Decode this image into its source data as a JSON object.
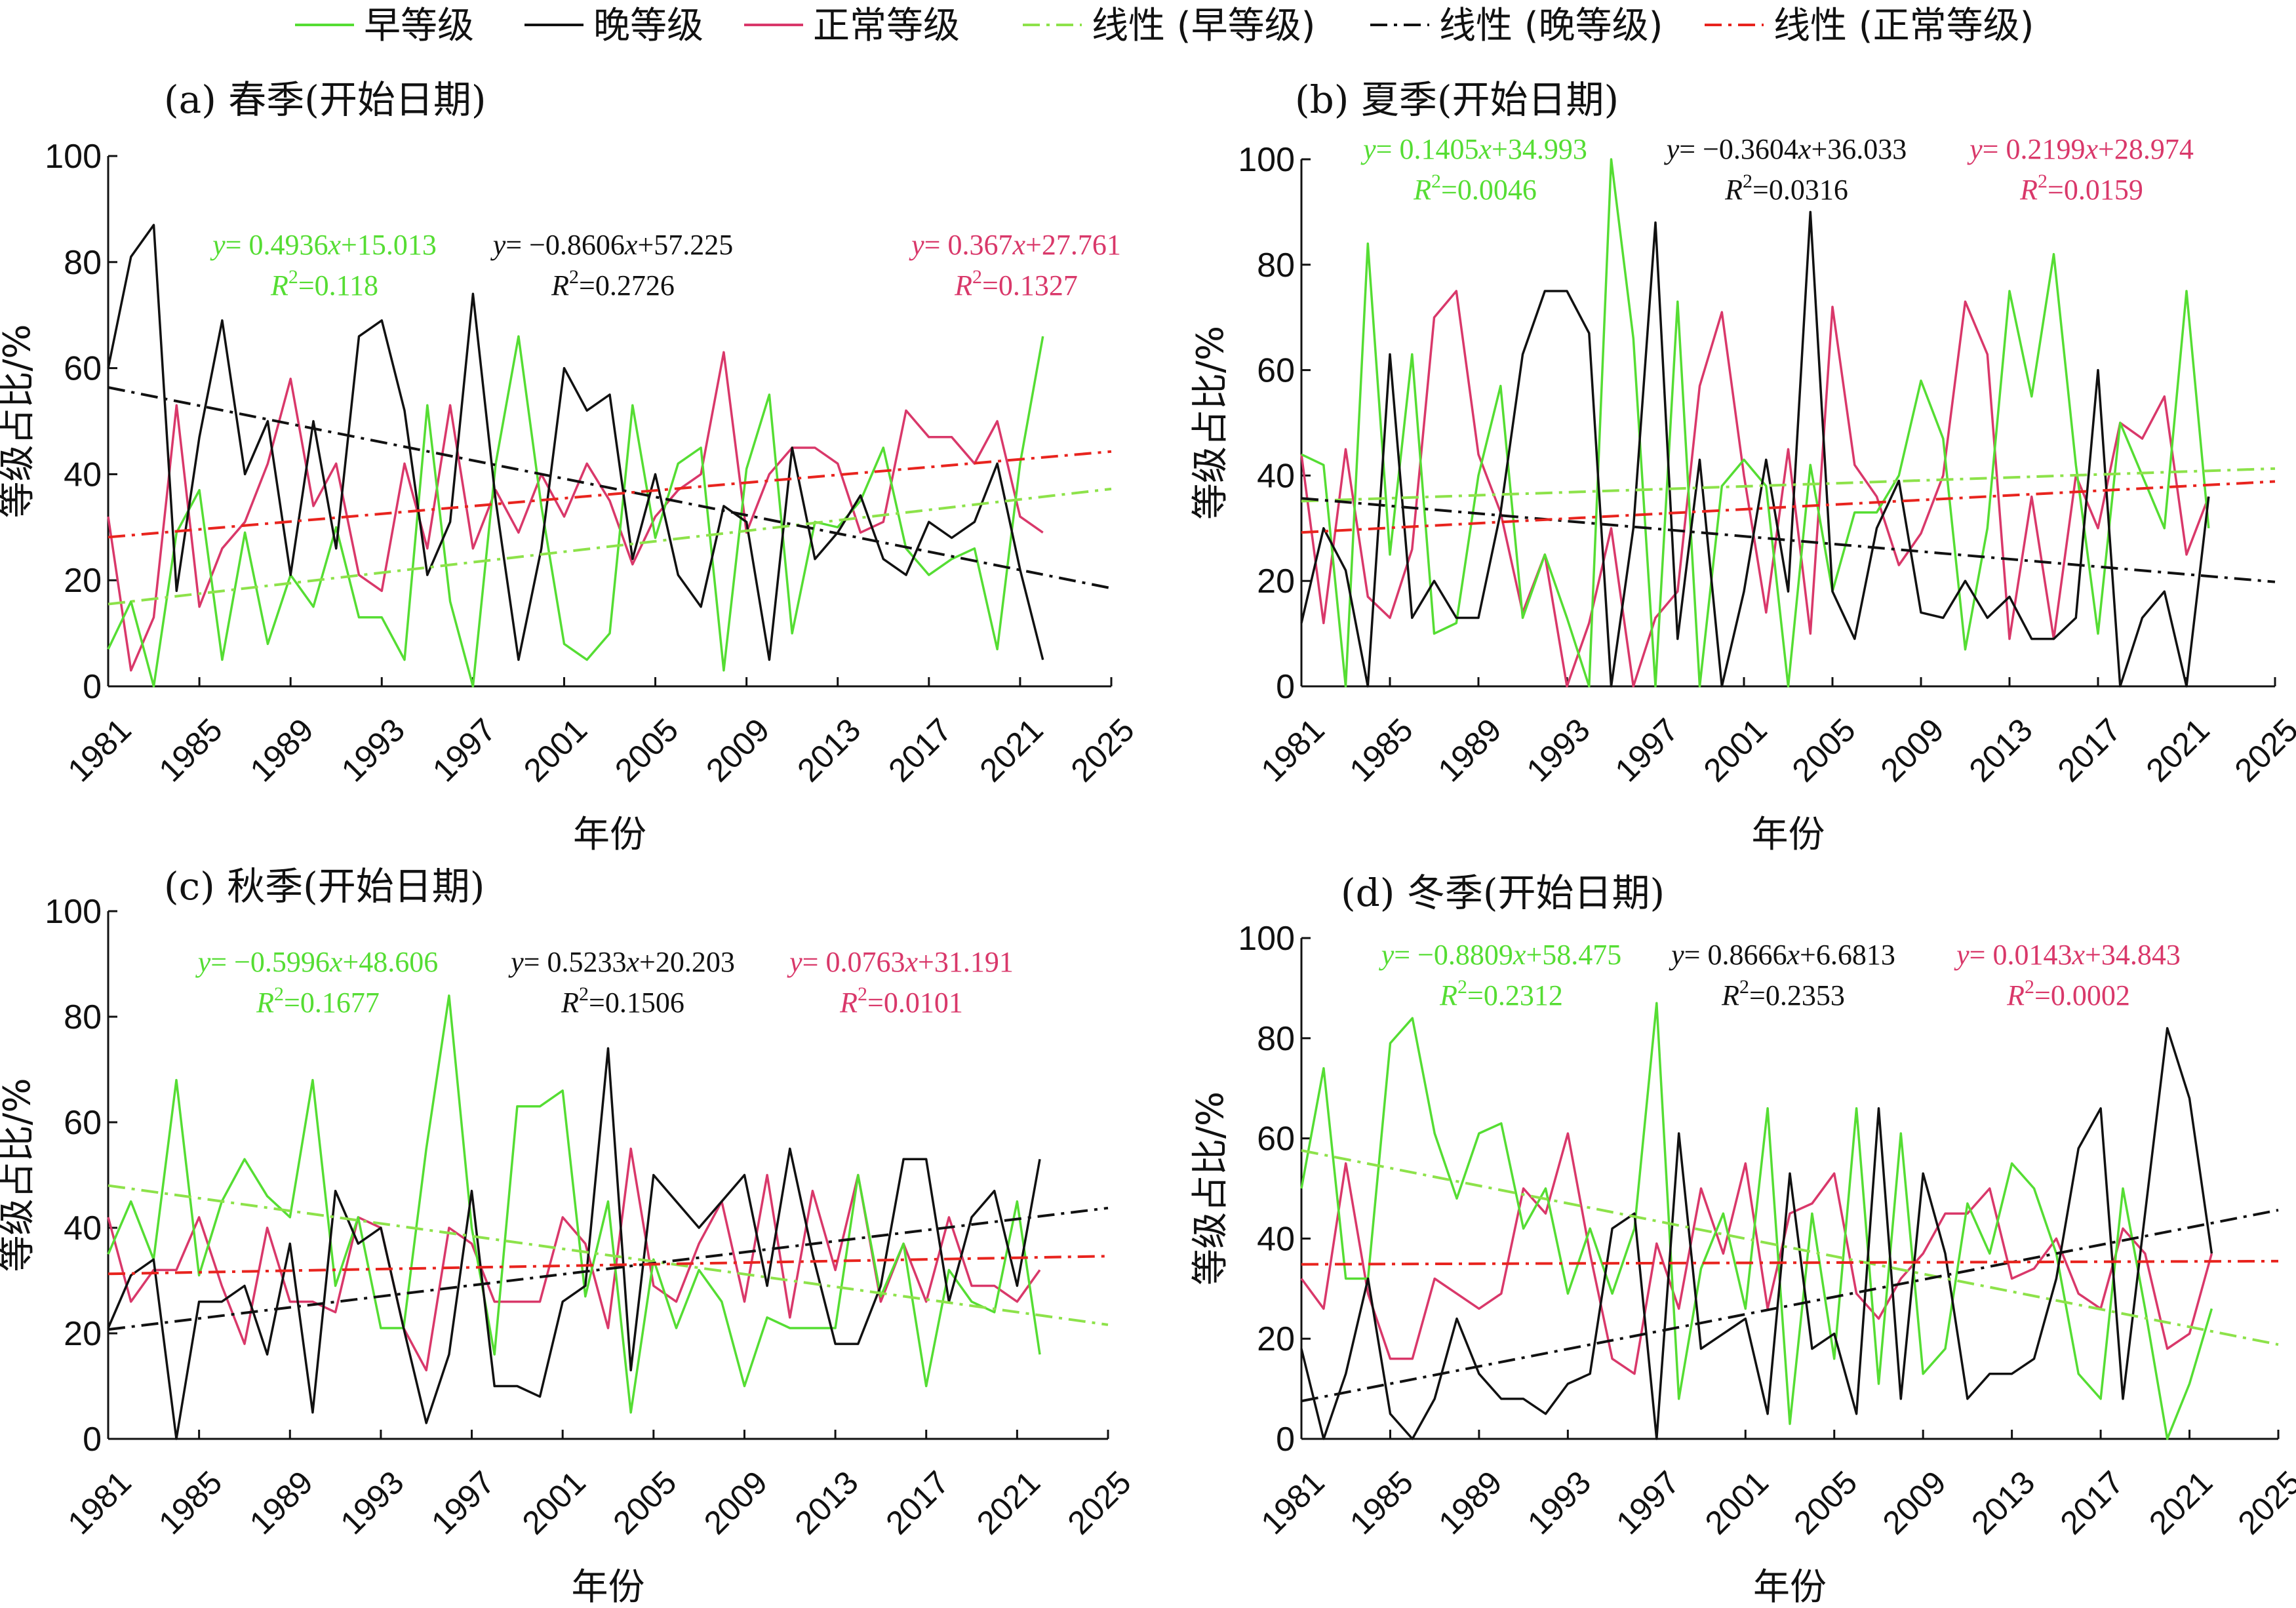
{
  "legend": [
    {
      "label": "早等级",
      "color": "#55dd33",
      "dash": "solid"
    },
    {
      "label": "晚等级",
      "color": "#111111",
      "dash": "solid"
    },
    {
      "label": "正常等级",
      "color": "#d9386a",
      "dash": "solid"
    },
    {
      "label": "线性 (早等级)",
      "color": "#8de24a",
      "dash": "dashdot"
    },
    {
      "label": "线性 (晚等级)",
      "color": "#111111",
      "dash": "dashdot"
    },
    {
      "label": "线性 (正常等级)",
      "color": "#e8241e",
      "dash": "dashdot"
    }
  ],
  "chart_data": [
    {
      "type": "line",
      "title": "(a) 春季(开始日期)",
      "xlabel": "年份",
      "ylabel": "等级占比/%",
      "xlim": [
        1981,
        2025
      ],
      "ylim": [
        0,
        100
      ],
      "x_ticks": [
        1981,
        1985,
        1989,
        1993,
        1997,
        2001,
        2005,
        2009,
        2013,
        2017,
        2021,
        2025
      ],
      "y_ticks": [
        0,
        20,
        40,
        60,
        80,
        100
      ],
      "x": [
        1981,
        1982,
        1983,
        1984,
        1985,
        1986,
        1987,
        1988,
        1989,
        1990,
        1991,
        1992,
        1993,
        1994,
        1995,
        1996,
        1997,
        1998,
        1999,
        2000,
        2001,
        2002,
        2003,
        2004,
        2005,
        2006,
        2007,
        2008,
        2009,
        2010,
        2011,
        2012,
        2013,
        2014,
        2015,
        2016,
        2017,
        2018,
        2019,
        2020,
        2021,
        2022
      ],
      "series": [
        {
          "name": "早等级",
          "color": "#55dd33",
          "values": [
            7,
            16,
            0,
            29,
            37,
            5,
            29,
            8,
            21,
            15,
            30,
            13,
            13,
            5,
            53,
            16,
            0,
            42,
            66,
            34,
            8,
            5,
            10,
            53,
            28,
            42,
            45,
            3,
            41,
            55,
            10,
            31,
            30,
            35,
            45,
            26,
            21,
            24,
            26,
            7,
            42,
            66
          ]
        },
        {
          "name": "晚等级",
          "color": "#111111",
          "values": [
            60,
            81,
            87,
            18,
            47,
            69,
            40,
            50,
            21,
            50,
            26,
            66,
            69,
            52,
            21,
            31,
            74,
            35,
            5,
            26,
            60,
            52,
            55,
            24,
            40,
            21,
            15,
            34,
            31,
            5,
            45,
            24,
            29,
            36,
            24,
            21,
            31,
            28,
            31,
            42,
            22,
            5
          ]
        },
        {
          "name": "正常等级",
          "color": "#d9386a",
          "values": [
            32,
            3,
            13,
            53,
            15,
            26,
            31,
            42,
            58,
            34,
            42,
            21,
            18,
            42,
            26,
            53,
            26,
            37,
            29,
            40,
            32,
            42,
            35,
            23,
            32,
            37,
            40,
            63,
            29,
            40,
            45,
            45,
            42,
            29,
            31,
            52,
            47,
            47,
            42,
            50,
            32,
            29
          ]
        }
      ],
      "trendlines": [
        {
          "name": "线性 (早等级)",
          "slope": 0.4936,
          "intercept": 15.013,
          "r2": 0.118,
          "color": "#8de24a"
        },
        {
          "name": "线性 (晚等级)",
          "slope": -0.8606,
          "intercept": 57.225,
          "r2": 0.2726,
          "color": "#111111"
        },
        {
          "name": "线性 (正常等级)",
          "slope": 0.367,
          "intercept": 27.761,
          "r2": 0.1327,
          "color": "#e8241e"
        }
      ],
      "equations": [
        {
          "eq_prefix": "y",
          "eq_body": "= 0.4936",
          "eq_var": "x",
          "eq_tail": "+15.013",
          "r2_label": "=0.118",
          "color": "#55dd33"
        },
        {
          "eq_prefix": "y",
          "eq_body": "= −0.8606",
          "eq_var": "x",
          "eq_tail": "+57.225",
          "r2_label": "=0.2726",
          "color": "#111111"
        },
        {
          "eq_prefix": "y",
          "eq_body": "= 0.367",
          "eq_var": "x",
          "eq_tail": "+27.761",
          "r2_label": "=0.1327",
          "color": "#d9386a"
        }
      ]
    },
    {
      "type": "line",
      "title": "(b) 夏季(开始日期)",
      "xlabel": "年份",
      "ylabel": "等级占比/%",
      "xlim": [
        1981,
        2025
      ],
      "ylim": [
        0,
        100
      ],
      "x_ticks": [
        1981,
        1985,
        1989,
        1993,
        1997,
        2001,
        2005,
        2009,
        2013,
        2017,
        2021,
        2025
      ],
      "y_ticks": [
        0,
        20,
        40,
        60,
        80,
        100
      ],
      "x": [
        1981,
        1982,
        1983,
        1984,
        1985,
        1986,
        1987,
        1988,
        1989,
        1990,
        1991,
        1992,
        1993,
        1994,
        1995,
        1996,
        1997,
        1998,
        1999,
        2000,
        2001,
        2002,
        2003,
        2004,
        2005,
        2006,
        2007,
        2008,
        2009,
        2010,
        2011,
        2012,
        2013,
        2014,
        2015,
        2016,
        2017,
        2018,
        2019,
        2020,
        2021,
        2022
      ],
      "series": [
        {
          "name": "早等级",
          "color": "#55dd33",
          "values": [
            44,
            42,
            0,
            84,
            25,
            63,
            10,
            12,
            40,
            57,
            13,
            25,
            13,
            0,
            100,
            66,
            0,
            73,
            0,
            38,
            43,
            38,
            0,
            42,
            18,
            33,
            33,
            40,
            58,
            47,
            7,
            30,
            75,
            55,
            82,
            42,
            10,
            50,
            40,
            30,
            75,
            30
          ]
        },
        {
          "name": "晚等级",
          "color": "#111111",
          "values": [
            12,
            30,
            22,
            0,
            63,
            13,
            20,
            13,
            13,
            33,
            63,
            75,
            75,
            67,
            0,
            30,
            88,
            9,
            43,
            0,
            18,
            43,
            18,
            90,
            18,
            9,
            30,
            39,
            14,
            13,
            20,
            13,
            17,
            9,
            9,
            13,
            60,
            0,
            13,
            18,
            0,
            36
          ]
        },
        {
          "name": "正常等级",
          "color": "#d9386a",
          "values": [
            44,
            12,
            45,
            17,
            13,
            26,
            70,
            75,
            44,
            33,
            14,
            25,
            0,
            12,
            30,
            0,
            13,
            18,
            57,
            71,
            40,
            14,
            45,
            10,
            72,
            42,
            36,
            23,
            29,
            40,
            73,
            63,
            9,
            36,
            9,
            40,
            30,
            50,
            47,
            55,
            25,
            36
          ]
        }
      ],
      "trendlines": [
        {
          "name": "线性 (早等级)",
          "slope": 0.1405,
          "intercept": 34.993,
          "r2": 0.0046,
          "color": "#8de24a"
        },
        {
          "name": "线性 (晚等级)",
          "slope": -0.3604,
          "intercept": 36.033,
          "r2": 0.0316,
          "color": "#111111"
        },
        {
          "name": "线性 (正常等级)",
          "slope": 0.2199,
          "intercept": 28.974,
          "r2": 0.0159,
          "color": "#e8241e"
        }
      ],
      "equations": [
        {
          "eq_prefix": "y",
          "eq_body": "= 0.1405",
          "eq_var": "x",
          "eq_tail": "+34.993",
          "r2_label": "=0.0046",
          "color": "#55dd33"
        },
        {
          "eq_prefix": "y",
          "eq_body": "= −0.3604",
          "eq_var": "x",
          "eq_tail": "+36.033",
          "r2_label": "=0.0316",
          "color": "#111111"
        },
        {
          "eq_prefix": "y",
          "eq_body": "= 0.2199",
          "eq_var": "x",
          "eq_tail": "+28.974",
          "r2_label": "=0.0159",
          "color": "#d9386a"
        }
      ]
    },
    {
      "type": "line",
      "title": "(c) 秋季(开始日期)",
      "xlabel": "年份",
      "ylabel": "等级占比/%",
      "xlim": [
        1981,
        2025
      ],
      "ylim": [
        0,
        100
      ],
      "x_ticks": [
        1981,
        1985,
        1989,
        1993,
        1997,
        2001,
        2005,
        2009,
        2013,
        2017,
        2021,
        2025
      ],
      "y_ticks": [
        0,
        20,
        40,
        60,
        80,
        100
      ],
      "x": [
        1981,
        1982,
        1983,
        1984,
        1985,
        1986,
        1987,
        1988,
        1989,
        1990,
        1991,
        1992,
        1993,
        1994,
        1995,
        1996,
        1997,
        1998,
        1999,
        2000,
        2001,
        2002,
        2003,
        2004,
        2005,
        2006,
        2007,
        2008,
        2009,
        2010,
        2011,
        2012,
        2013,
        2014,
        2015,
        2016,
        2017,
        2018,
        2019,
        2020,
        2021,
        2022
      ],
      "series": [
        {
          "name": "早等级",
          "color": "#55dd33",
          "values": [
            35,
            45,
            34,
            68,
            31,
            45,
            53,
            46,
            42,
            68,
            29,
            42,
            21,
            21,
            55,
            84,
            40,
            16,
            63,
            63,
            66,
            27,
            45,
            5,
            34,
            21,
            32,
            26,
            10,
            23,
            21,
            21,
            21,
            50,
            27,
            37,
            10,
            32,
            26,
            24,
            45,
            16
          ]
        },
        {
          "name": "晚等级",
          "color": "#111111",
          "values": [
            21,
            31,
            34,
            0,
            26,
            26,
            29,
            16,
            37,
            5,
            47,
            37,
            40,
            21,
            3,
            16,
            47,
            10,
            10,
            8,
            26,
            29,
            74,
            13,
            50,
            45,
            40,
            45,
            50,
            29,
            55,
            35,
            18,
            18,
            29,
            53,
            53,
            26,
            42,
            47,
            29,
            53
          ]
        },
        {
          "name": "正常等级",
          "color": "#d9386a",
          "values": [
            42,
            26,
            32,
            32,
            42,
            29,
            18,
            40,
            26,
            26,
            24,
            42,
            40,
            21,
            13,
            40,
            37,
            26,
            26,
            26,
            42,
            37,
            21,
            55,
            29,
            26,
            37,
            45,
            26,
            50,
            23,
            47,
            32,
            50,
            26,
            37,
            26,
            42,
            29,
            29,
            26,
            32
          ]
        }
      ],
      "trendlines": [
        {
          "name": "线性 (早等级)",
          "slope": -0.5996,
          "intercept": 48.606,
          "r2": 0.1677,
          "color": "#8de24a"
        },
        {
          "name": "线性 (晚等级)",
          "slope": 0.5233,
          "intercept": 20.203,
          "r2": 0.1506,
          "color": "#111111"
        },
        {
          "name": "线性 (正常等级)",
          "slope": 0.0763,
          "intercept": 31.191,
          "r2": 0.0101,
          "color": "#e8241e"
        }
      ],
      "equations": [
        {
          "eq_prefix": "y",
          "eq_body": "= −0.5996",
          "eq_var": "x",
          "eq_tail": "+48.606",
          "r2_label": "=0.1677",
          "color": "#55dd33"
        },
        {
          "eq_prefix": "y",
          "eq_body": "= 0.5233",
          "eq_var": "x",
          "eq_tail": "+20.203",
          "r2_label": "=0.1506",
          "color": "#111111"
        },
        {
          "eq_prefix": "y",
          "eq_body": "= 0.0763",
          "eq_var": "x",
          "eq_tail": "+31.191",
          "r2_label": "=0.0101",
          "color": "#d9386a"
        }
      ]
    },
    {
      "type": "line",
      "title": "(d) 冬季(开始日期)",
      "xlabel": "年份",
      "ylabel": "等级占比/%",
      "xlim": [
        1981,
        2025
      ],
      "ylim": [
        0,
        100
      ],
      "x_ticks": [
        1981,
        1985,
        1989,
        1993,
        1997,
        2001,
        2005,
        2009,
        2013,
        2017,
        2021,
        2025
      ],
      "y_ticks": [
        0,
        20,
        40,
        60,
        80,
        100
      ],
      "x": [
        1981,
        1982,
        1983,
        1984,
        1985,
        1986,
        1987,
        1988,
        1989,
        1990,
        1991,
        1992,
        1993,
        1994,
        1995,
        1996,
        1997,
        1998,
        1999,
        2000,
        2001,
        2002,
        2003,
        2004,
        2005,
        2006,
        2007,
        2008,
        2009,
        2010,
        2011,
        2012,
        2013,
        2014,
        2015,
        2016,
        2017,
        2018,
        2019,
        2020,
        2021,
        2022
      ],
      "series": [
        {
          "name": "早等级",
          "color": "#55dd33",
          "values": [
            50,
            74,
            32,
            32,
            79,
            84,
            61,
            48,
            61,
            63,
            42,
            50,
            29,
            42,
            29,
            42,
            87,
            8,
            34,
            45,
            26,
            66,
            3,
            45,
            16,
            66,
            11,
            61,
            13,
            18,
            47,
            37,
            55,
            50,
            37,
            13,
            8,
            50,
            26,
            0,
            11,
            26
          ]
        },
        {
          "name": "晚等级",
          "color": "#111111",
          "values": [
            18,
            0,
            13,
            32,
            5,
            0,
            8,
            24,
            13,
            8,
            8,
            5,
            11,
            13,
            42,
            45,
            0,
            61,
            18,
            21,
            24,
            5,
            53,
            18,
            21,
            5,
            66,
            8,
            53,
            37,
            8,
            13,
            13,
            16,
            32,
            58,
            66,
            8,
            45,
            82,
            68,
            37
          ]
        },
        {
          "name": "正常等级",
          "color": "#d9386a",
          "values": [
            32,
            26,
            55,
            29,
            16,
            16,
            32,
            29,
            26,
            29,
            50,
            45,
            61,
            37,
            16,
            13,
            39,
            26,
            50,
            37,
            55,
            26,
            45,
            47,
            53,
            29,
            24,
            32,
            37,
            45,
            45,
            50,
            32,
            34,
            40,
            29,
            26,
            42,
            37,
            18,
            21,
            37
          ]
        }
      ],
      "trendlines": [
        {
          "name": "线性 (早等级)",
          "slope": -0.8809,
          "intercept": 58.475,
          "r2": 0.2312,
          "color": "#8de24a"
        },
        {
          "name": "线性 (晚等级)",
          "slope": 0.8666,
          "intercept": 6.6813,
          "r2": 0.2353,
          "color": "#111111"
        },
        {
          "name": "线性 (正常等级)",
          "slope": 0.0143,
          "intercept": 34.843,
          "r2": 0.0002,
          "color": "#e8241e"
        }
      ],
      "equations": [
        {
          "eq_prefix": "y",
          "eq_body": "= −0.8809",
          "eq_var": "x",
          "eq_tail": "+58.475",
          "r2_label": "=0.2312",
          "color": "#55dd33"
        },
        {
          "eq_prefix": "y",
          "eq_body": "= 0.8666",
          "eq_var": "x",
          "eq_tail": "+6.6813",
          "r2_label": "=0.2353",
          "color": "#111111"
        },
        {
          "eq_prefix": "y",
          "eq_body": "= 0.0143",
          "eq_var": "x",
          "eq_tail": "+34.843",
          "r2_label": "=0.0002",
          "color": "#d9386a"
        }
      ]
    }
  ]
}
